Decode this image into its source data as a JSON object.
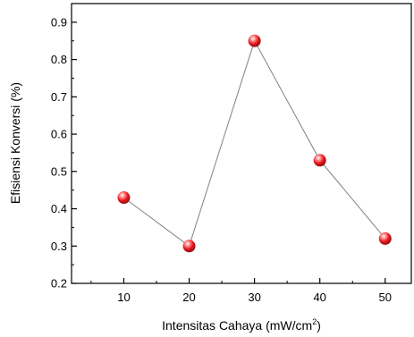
{
  "chart_data": {
    "type": "scatter",
    "x": [
      10,
      20,
      30,
      40,
      50
    ],
    "series": [
      {
        "values": [
          0.43,
          0.3,
          0.85,
          0.53,
          0.32
        ],
        "connected": true,
        "marker": "sphere"
      }
    ],
    "xlabel": "Intensitas Cahaya (mW/cm",
    "xlabel_sup": "2",
    "xlabel_close": ")",
    "ylabel": "Efisiensi Konversi (%)",
    "xlim": [
      2,
      54
    ],
    "ylim": [
      0.2,
      0.95
    ],
    "xticks": [
      "10",
      "20",
      "30",
      "40",
      "50"
    ],
    "yticks": [
      "0.2",
      "0.3",
      "0.4",
      "0.5",
      "0.6",
      "0.7",
      "0.8",
      "0.9"
    ],
    "grid": false,
    "colors": {
      "marker": "#e8191f",
      "line": "#808080",
      "axis": "#000000"
    }
  }
}
